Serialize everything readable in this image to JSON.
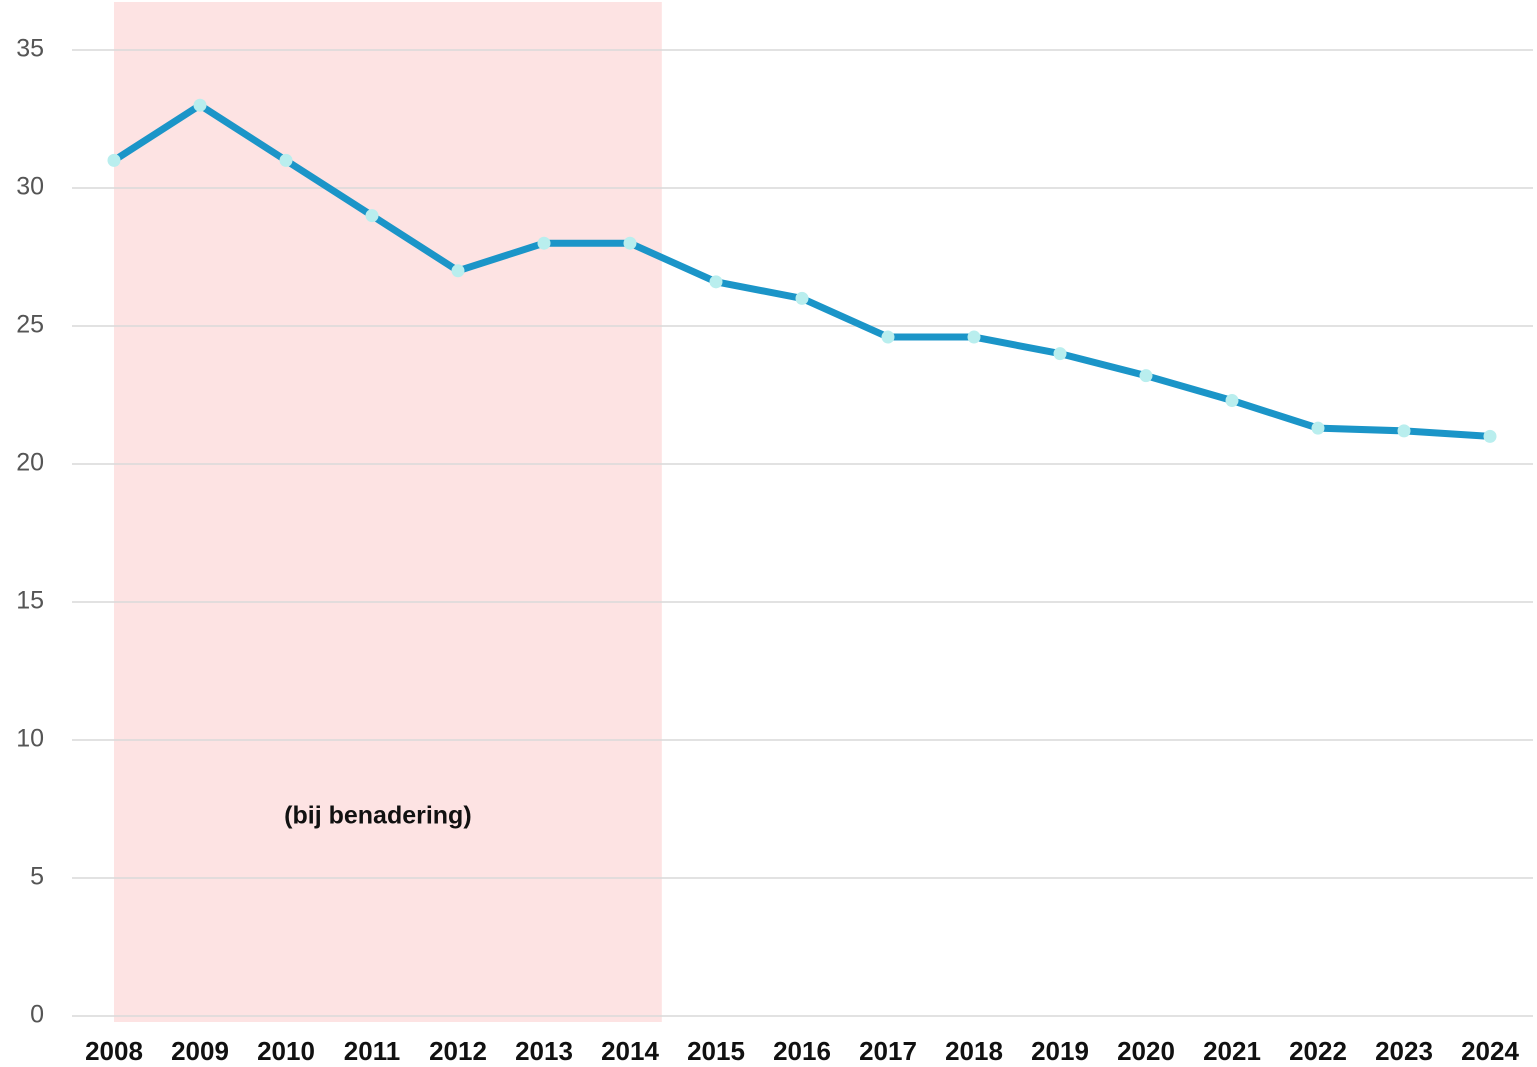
{
  "chart_data": {
    "type": "line",
    "categories": [
      "2008",
      "2009",
      "2010",
      "2011",
      "2012",
      "2013",
      "2014",
      "2015",
      "2016",
      "2017",
      "2018",
      "2019",
      "2020",
      "2021",
      "2022",
      "2023",
      "2024"
    ],
    "values": [
      31,
      33,
      31,
      29,
      27,
      28,
      28,
      26.6,
      26,
      24.6,
      24.6,
      24,
      23.2,
      22.3,
      21.3,
      21.2,
      21
    ],
    "color": "#1b95c8",
    "marker_color": "#b9eeee",
    "ylim": [
      0,
      35
    ],
    "yticks": [
      0,
      5,
      10,
      15,
      20,
      25,
      30,
      35
    ],
    "grid": true,
    "shaded_range": [
      "2008",
      "2014"
    ],
    "shade_color": "#fde3e3",
    "annotation": "(bij benadering)"
  }
}
